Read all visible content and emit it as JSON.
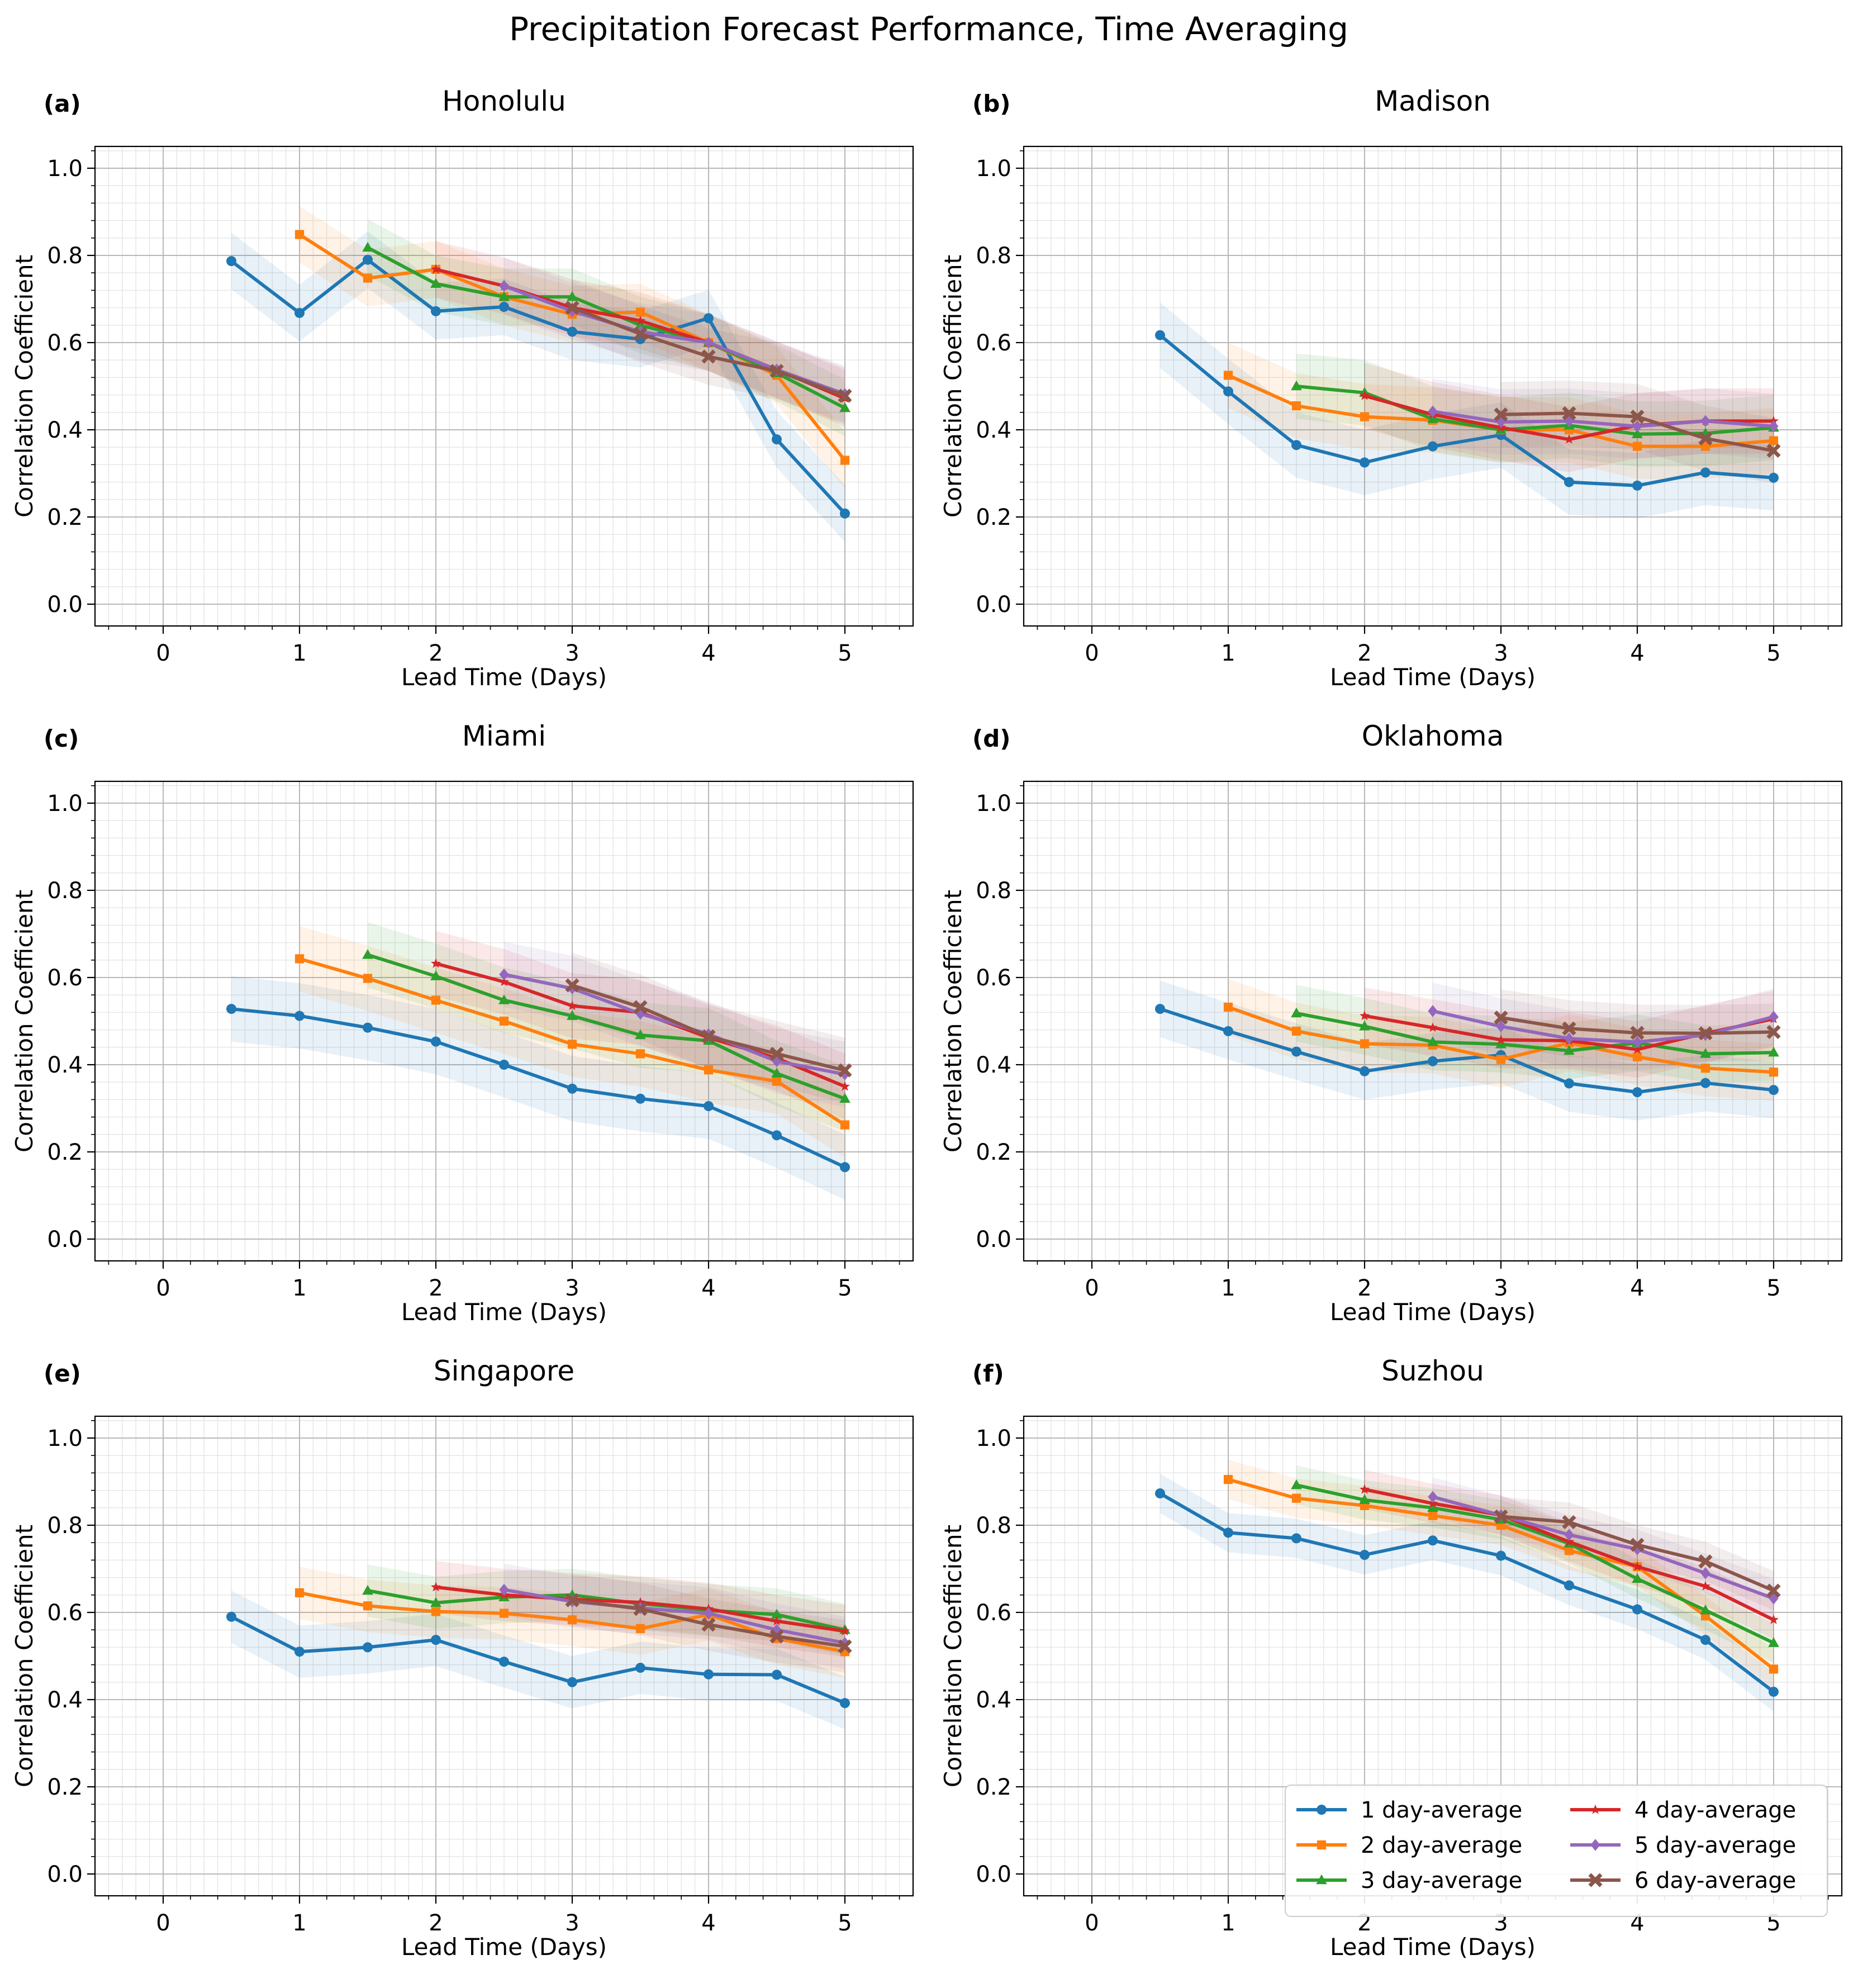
{
  "title": "Precipitation Forecast Performance, Time Averaging",
  "colors": {
    "1 day-average": "#1f77b4",
    "2 day-average": "#ff7f0e",
    "3 day-average": "#2ca02c",
    "4 day-average": "#d62728",
    "5 day-average": "#9467bd",
    "6 day-average": "#8c564b"
  },
  "markers": {
    "1 day-average": "circle",
    "2 day-average": "square",
    "3 day-average": "triangle",
    "4 day-average": "star",
    "5 day-average": "diamond",
    "6 day-average": "x"
  },
  "legend": {
    "entries": [
      "1 day-average",
      "2 day-average",
      "3 day-average",
      "4 day-average",
      "5 day-average",
      "6 day-average"
    ],
    "placement": "lower-right of panel (f)"
  },
  "chart_data": [
    {
      "type": "line",
      "panel": "(a)",
      "title": "Honolulu",
      "xlabel": "Lead Time (Days)",
      "ylabel": "Correlation Coefficient",
      "xlim": [
        -0.5,
        5.5
      ],
      "ylim": [
        -0.05,
        1.05
      ],
      "xticks": [
        0,
        1,
        2,
        3,
        4,
        5
      ],
      "xtick_labels": [
        "0",
        "1",
        "2",
        "3",
        "4",
        "5"
      ],
      "yticks": [
        0.0,
        0.2,
        0.4,
        0.6,
        0.8,
        1.0
      ],
      "ytick_labels": [
        "0.0",
        "0.2",
        "0.4",
        "0.6",
        "0.8",
        "1.0"
      ],
      "grid": true,
      "band_halfwidth": 0.065,
      "series": [
        {
          "name": "1 day-average",
          "x": [
            0.5,
            1,
            1.5,
            2,
            2.5,
            3,
            3.5,
            4,
            4.5,
            5
          ],
          "values": [
            0.787,
            0.668,
            0.79,
            0.672,
            0.682,
            0.625,
            0.608,
            0.656,
            0.378,
            0.208
          ]
        },
        {
          "name": "2 day-average",
          "x": [
            1,
            1.5,
            2,
            2.5,
            3,
            3.5,
            4,
            4.5,
            5
          ],
          "values": [
            0.848,
            0.748,
            0.768,
            0.705,
            0.665,
            0.67,
            0.6,
            0.525,
            0.33
          ]
        },
        {
          "name": "3 day-average",
          "x": [
            1.5,
            2,
            2.5,
            3,
            3.5,
            4,
            4.5,
            5
          ],
          "values": [
            0.818,
            0.735,
            0.705,
            0.705,
            0.64,
            0.6,
            0.53,
            0.45
          ]
        },
        {
          "name": "4 day-average",
          "x": [
            2,
            2.5,
            3,
            3.5,
            4,
            4.5,
            5
          ],
          "values": [
            0.768,
            0.73,
            0.68,
            0.65,
            0.6,
            0.538,
            0.472
          ]
        },
        {
          "name": "5 day-average",
          "x": [
            2.5,
            3,
            3.5,
            4,
            4.5,
            5
          ],
          "values": [
            0.73,
            0.672,
            0.625,
            0.6,
            0.538,
            0.482
          ]
        },
        {
          "name": "6 day-average",
          "x": [
            3,
            3.5,
            4,
            4.5,
            5
          ],
          "values": [
            0.68,
            0.62,
            0.568,
            0.535,
            0.478
          ]
        }
      ]
    },
    {
      "type": "line",
      "panel": "(b)",
      "title": "Madison",
      "xlabel": "Lead Time (Days)",
      "ylabel": "Correlation Coefficient",
      "xlim": [
        -0.5,
        5.5
      ],
      "ylim": [
        -0.05,
        1.05
      ],
      "xticks": [
        0,
        1,
        2,
        3,
        4,
        5
      ],
      "xtick_labels": [
        "0",
        "1",
        "2",
        "3",
        "4",
        "5"
      ],
      "yticks": [
        0.0,
        0.2,
        0.4,
        0.6,
        0.8,
        1.0
      ],
      "ytick_labels": [
        "0.0",
        "0.2",
        "0.4",
        "0.6",
        "0.8",
        "1.0"
      ],
      "grid": true,
      "band_halfwidth": 0.075,
      "series": [
        {
          "name": "1 day-average",
          "x": [
            0.5,
            1,
            1.5,
            2,
            2.5,
            3,
            3.5,
            4,
            4.5,
            5
          ],
          "values": [
            0.617,
            0.488,
            0.365,
            0.325,
            0.362,
            0.388,
            0.28,
            0.272,
            0.302,
            0.29
          ]
        },
        {
          "name": "2 day-average",
          "x": [
            1,
            1.5,
            2,
            2.5,
            3,
            3.5,
            4,
            4.5,
            5
          ],
          "values": [
            0.525,
            0.455,
            0.43,
            0.422,
            0.4,
            0.4,
            0.362,
            0.362,
            0.375
          ]
        },
        {
          "name": "3 day-average",
          "x": [
            1.5,
            2,
            2.5,
            3,
            3.5,
            4,
            4.5,
            5
          ],
          "values": [
            0.5,
            0.485,
            0.425,
            0.4,
            0.41,
            0.39,
            0.392,
            0.405
          ]
        },
        {
          "name": "4 day-average",
          "x": [
            2,
            2.5,
            3,
            3.5,
            4,
            4.5,
            5
          ],
          "values": [
            0.478,
            0.435,
            0.405,
            0.378,
            0.41,
            0.42,
            0.42
          ]
        },
        {
          "name": "5 day-average",
          "x": [
            2.5,
            3,
            3.5,
            4,
            4.5,
            5
          ],
          "values": [
            0.442,
            0.418,
            0.42,
            0.408,
            0.42,
            0.408
          ]
        },
        {
          "name": "6 day-average",
          "x": [
            3,
            3.5,
            4,
            4.5,
            5
          ],
          "values": [
            0.435,
            0.438,
            0.43,
            0.38,
            0.352
          ]
        }
      ]
    },
    {
      "type": "line",
      "panel": "(c)",
      "title": "Miami",
      "xlabel": "Lead Time (Days)",
      "ylabel": "Correlation Coefficient",
      "xlim": [
        -0.5,
        5.5
      ],
      "ylim": [
        -0.05,
        1.05
      ],
      "xticks": [
        0,
        1,
        2,
        3,
        4,
        5
      ],
      "xtick_labels": [
        "0",
        "1",
        "2",
        "3",
        "4",
        "5"
      ],
      "yticks": [
        0.0,
        0.2,
        0.4,
        0.6,
        0.8,
        1.0
      ],
      "ytick_labels": [
        "0.0",
        "0.2",
        "0.4",
        "0.6",
        "0.8",
        "1.0"
      ],
      "grid": true,
      "band_halfwidth": 0.075,
      "series": [
        {
          "name": "1 day-average",
          "x": [
            0.5,
            1,
            1.5,
            2,
            2.5,
            3,
            3.5,
            4,
            4.5,
            5
          ],
          "values": [
            0.528,
            0.512,
            0.485,
            0.453,
            0.4,
            0.345,
            0.322,
            0.305,
            0.238,
            0.165
          ]
        },
        {
          "name": "2 day-average",
          "x": [
            1,
            1.5,
            2,
            2.5,
            3,
            3.5,
            4,
            4.5,
            5
          ],
          "values": [
            0.643,
            0.598,
            0.548,
            0.5,
            0.447,
            0.425,
            0.388,
            0.362,
            0.262
          ]
        },
        {
          "name": "3 day-average",
          "x": [
            1.5,
            2,
            2.5,
            3,
            3.5,
            4,
            4.5,
            5
          ],
          "values": [
            0.652,
            0.603,
            0.548,
            0.512,
            0.468,
            0.455,
            0.38,
            0.322
          ]
        },
        {
          "name": "4 day-average",
          "x": [
            2,
            2.5,
            3,
            3.5,
            4,
            4.5,
            5
          ],
          "values": [
            0.632,
            0.59,
            0.535,
            0.52,
            0.462,
            0.415,
            0.35
          ]
        },
        {
          "name": "5 day-average",
          "x": [
            2.5,
            3,
            3.5,
            4,
            4.5,
            5
          ],
          "values": [
            0.607,
            0.575,
            0.517,
            0.47,
            0.408,
            0.378
          ]
        },
        {
          "name": "6 day-average",
          "x": [
            3,
            3.5,
            4,
            4.5,
            5
          ],
          "values": [
            0.582,
            0.532,
            0.465,
            0.425,
            0.387
          ]
        }
      ]
    },
    {
      "type": "line",
      "panel": "(d)",
      "title": "Oklahoma",
      "xlabel": "Lead Time (Days)",
      "ylabel": "Correlation Coefficient",
      "xlim": [
        -0.5,
        5.5
      ],
      "ylim": [
        -0.05,
        1.05
      ],
      "xticks": [
        0,
        1,
        2,
        3,
        4,
        5
      ],
      "xtick_labels": [
        "0",
        "1",
        "2",
        "3",
        "4",
        "5"
      ],
      "yticks": [
        0.0,
        0.2,
        0.4,
        0.6,
        0.8,
        1.0
      ],
      "ytick_labels": [
        "0.0",
        "0.2",
        "0.4",
        "0.6",
        "0.8",
        "1.0"
      ],
      "grid": true,
      "band_halfwidth": 0.065,
      "series": [
        {
          "name": "1 day-average",
          "x": [
            0.5,
            1,
            1.5,
            2,
            2.5,
            3,
            3.5,
            4,
            4.5,
            5
          ],
          "values": [
            0.528,
            0.477,
            0.43,
            0.385,
            0.408,
            0.422,
            0.357,
            0.337,
            0.358,
            0.342
          ]
        },
        {
          "name": "2 day-average",
          "x": [
            1,
            1.5,
            2,
            2.5,
            3,
            3.5,
            4,
            4.5,
            5
          ],
          "values": [
            0.532,
            0.477,
            0.448,
            0.445,
            0.412,
            0.45,
            0.418,
            0.392,
            0.383
          ]
        },
        {
          "name": "3 day-average",
          "x": [
            1.5,
            2,
            2.5,
            3,
            3.5,
            4,
            4.5,
            5
          ],
          "values": [
            0.518,
            0.488,
            0.452,
            0.447,
            0.432,
            0.45,
            0.425,
            0.428
          ]
        },
        {
          "name": "4 day-average",
          "x": [
            2,
            2.5,
            3,
            3.5,
            4,
            4.5,
            5
          ],
          "values": [
            0.512,
            0.485,
            0.457,
            0.455,
            0.435,
            0.472,
            0.505
          ]
        },
        {
          "name": "5 day-average",
          "x": [
            2.5,
            3,
            3.5,
            4,
            4.5,
            5
          ],
          "values": [
            0.523,
            0.488,
            0.46,
            0.452,
            0.468,
            0.51
          ]
        },
        {
          "name": "6 day-average",
          "x": [
            3,
            3.5,
            4,
            4.5,
            5
          ],
          "values": [
            0.508,
            0.483,
            0.473,
            0.472,
            0.475
          ]
        }
      ]
    },
    {
      "type": "line",
      "panel": "(e)",
      "title": "Singapore",
      "xlabel": "Lead Time (Days)",
      "ylabel": "Correlation Coefficient",
      "xlim": [
        -0.5,
        5.5
      ],
      "ylim": [
        -0.05,
        1.05
      ],
      "xticks": [
        0,
        1,
        2,
        3,
        4,
        5
      ],
      "xtick_labels": [
        "0",
        "1",
        "2",
        "3",
        "4",
        "5"
      ],
      "yticks": [
        0.0,
        0.2,
        0.4,
        0.6,
        0.8,
        1.0
      ],
      "ytick_labels": [
        "0.0",
        "0.2",
        "0.4",
        "0.6",
        "0.8",
        "1.0"
      ],
      "grid": true,
      "band_halfwidth": 0.06,
      "series": [
        {
          "name": "1 day-average",
          "x": [
            0.5,
            1,
            1.5,
            2,
            2.5,
            3,
            3.5,
            4,
            4.5,
            5
          ],
          "values": [
            0.59,
            0.51,
            0.52,
            0.537,
            0.487,
            0.44,
            0.473,
            0.458,
            0.457,
            0.392
          ]
        },
        {
          "name": "2 day-average",
          "x": [
            1,
            1.5,
            2,
            2.5,
            3,
            3.5,
            4,
            4.5,
            5
          ],
          "values": [
            0.645,
            0.615,
            0.602,
            0.598,
            0.583,
            0.563,
            0.595,
            0.54,
            0.51
          ]
        },
        {
          "name": "3 day-average",
          "x": [
            1.5,
            2,
            2.5,
            3,
            3.5,
            4,
            4.5,
            5
          ],
          "values": [
            0.65,
            0.622,
            0.635,
            0.64,
            0.62,
            0.605,
            0.595,
            0.56
          ]
        },
        {
          "name": "4 day-average",
          "x": [
            2,
            2.5,
            3,
            3.5,
            4,
            4.5,
            5
          ],
          "values": [
            0.658,
            0.64,
            0.63,
            0.623,
            0.608,
            0.58,
            0.557
          ]
        },
        {
          "name": "5 day-average",
          "x": [
            2.5,
            3,
            3.5,
            4,
            4.5,
            5
          ],
          "values": [
            0.652,
            0.625,
            0.61,
            0.598,
            0.56,
            0.53
          ]
        },
        {
          "name": "6 day-average",
          "x": [
            3,
            3.5,
            4,
            4.5,
            5
          ],
          "values": [
            0.628,
            0.608,
            0.572,
            0.545,
            0.522
          ]
        }
      ]
    },
    {
      "type": "line",
      "panel": "(f)",
      "title": "Suzhou",
      "xlabel": "Lead Time (Days)",
      "ylabel": "Correlation Coefficient",
      "xlim": [
        -0.5,
        5.5
      ],
      "ylim": [
        -0.05,
        1.05
      ],
      "xticks": [
        0,
        1,
        2,
        3,
        4,
        5
      ],
      "xtick_labels": [
        "0",
        "1",
        "2",
        "3",
        "4",
        "5"
      ],
      "yticks": [
        0.0,
        0.2,
        0.4,
        0.6,
        0.8,
        1.0
      ],
      "ytick_labels": [
        "0.0",
        "0.2",
        "0.4",
        "0.6",
        "0.8",
        "1.0"
      ],
      "grid": true,
      "band_halfwidth": 0.045,
      "series": [
        {
          "name": "1 day-average",
          "x": [
            0.5,
            1,
            1.5,
            2,
            2.5,
            3,
            3.5,
            4,
            4.5,
            5
          ],
          "values": [
            0.873,
            0.783,
            0.77,
            0.732,
            0.765,
            0.73,
            0.662,
            0.607,
            0.537,
            0.418
          ]
        },
        {
          "name": "2 day-average",
          "x": [
            1,
            1.5,
            2,
            2.5,
            3,
            3.5,
            4,
            4.5,
            5
          ],
          "values": [
            0.905,
            0.862,
            0.845,
            0.822,
            0.8,
            0.742,
            0.705,
            0.592,
            0.47
          ]
        },
        {
          "name": "3 day-average",
          "x": [
            1.5,
            2,
            2.5,
            3,
            3.5,
            4,
            4.5,
            5
          ],
          "values": [
            0.892,
            0.858,
            0.84,
            0.813,
            0.758,
            0.677,
            0.605,
            0.53
          ]
        },
        {
          "name": "4 day-average",
          "x": [
            2,
            2.5,
            3,
            3.5,
            4,
            4.5,
            5
          ],
          "values": [
            0.882,
            0.85,
            0.823,
            0.762,
            0.705,
            0.66,
            0.583
          ]
        },
        {
          "name": "5 day-average",
          "x": [
            2.5,
            3,
            3.5,
            4,
            4.5,
            5
          ],
          "values": [
            0.865,
            0.823,
            0.778,
            0.745,
            0.69,
            0.632
          ]
        },
        {
          "name": "6 day-average",
          "x": [
            3,
            3.5,
            4,
            4.5,
            5
          ],
          "values": [
            0.82,
            0.807,
            0.755,
            0.717,
            0.65
          ]
        }
      ]
    }
  ]
}
